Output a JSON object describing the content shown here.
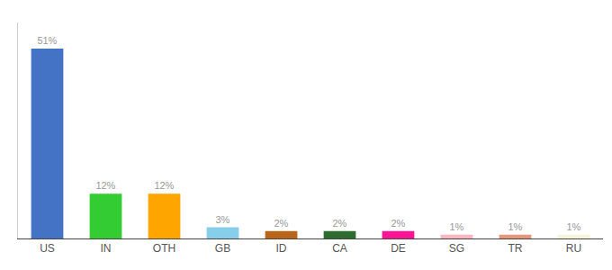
{
  "chart_data": {
    "type": "bar",
    "categories": [
      "US",
      "IN",
      "OTH",
      "GB",
      "ID",
      "CA",
      "DE",
      "SG",
      "TR",
      "RU"
    ],
    "values": [
      51,
      12,
      12,
      3,
      2,
      2,
      2,
      1,
      1,
      1
    ],
    "value_labels": [
      "51%",
      "12%",
      "12%",
      "3%",
      "2%",
      "2%",
      "2%",
      "1%",
      "1%",
      "1%"
    ],
    "data_labels": true,
    "colors": [
      "#4472C4",
      "#33CC33",
      "#FFA500",
      "#87CEEB",
      "#B8651A",
      "#2E6B2E",
      "#FF1493",
      "#FFB6C1",
      "#E8967A",
      "#F5F5DC"
    ],
    "ylim": [
      0,
      58
    ],
    "tick_labels": "x",
    "grid": false
  }
}
